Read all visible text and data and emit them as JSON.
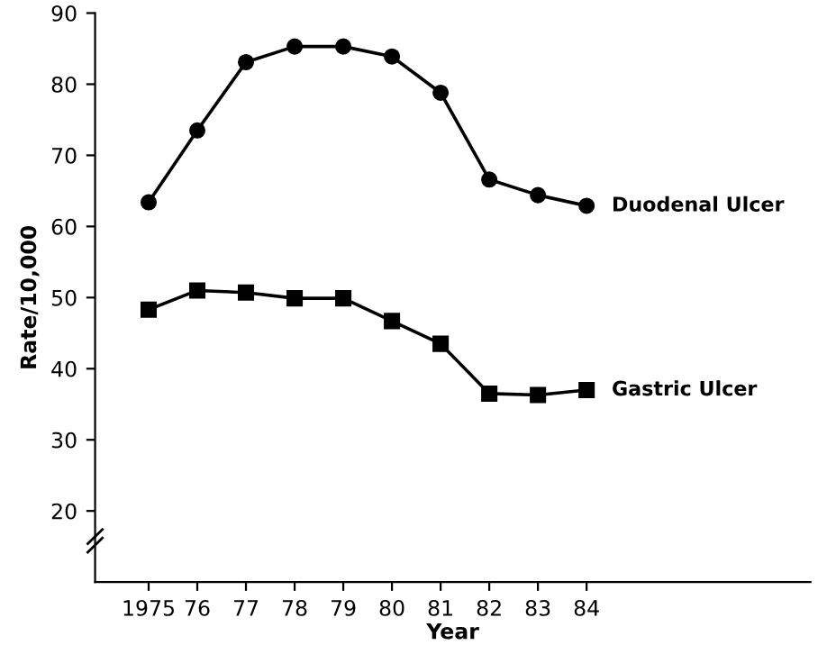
{
  "chart_data": {
    "type": "line",
    "xlabel": "Year",
    "ylabel": "Rate/10,000",
    "categories": [
      "1975",
      "76",
      "77",
      "78",
      "79",
      "80",
      "81",
      "82",
      "83",
      "84"
    ],
    "series": [
      {
        "name": "Duodenal Ulcer",
        "color": "#000000",
        "marker": "circle",
        "values": [
          63.4,
          73.5,
          83.1,
          85.3,
          85.3,
          83.9,
          78.8,
          66.6,
          64.4,
          62.9
        ]
      },
      {
        "name": "Gastric Ulcer",
        "color": "#000000",
        "marker": "square",
        "values": [
          48.3,
          51.0,
          50.7,
          49.9,
          49.9,
          46.7,
          43.5,
          36.5,
          36.3,
          37.0
        ]
      }
    ],
    "ylim": [
      10,
      90
    ],
    "yticks": [
      20,
      30,
      40,
      50,
      60,
      70,
      80,
      90
    ],
    "line_style": "solid",
    "grid": false,
    "legend": false
  }
}
